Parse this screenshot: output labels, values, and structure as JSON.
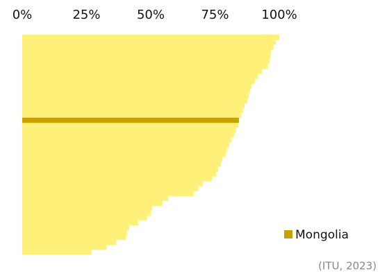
{
  "chart_data": {
    "type": "bar",
    "orientation": "horizontal",
    "categories": [
      null,
      null,
      null,
      null,
      null,
      null,
      null,
      null,
      null,
      null,
      null,
      null,
      null,
      null,
      null,
      null,
      null,
      "Mongolia",
      null,
      null,
      null,
      null,
      null,
      null,
      null,
      null,
      null,
      null,
      null,
      null,
      null,
      null,
      null,
      null,
      null,
      null,
      null,
      null,
      null,
      null,
      null,
      null,
      null,
      null,
      null
    ],
    "values": [
      100,
      98.6,
      97.8,
      96.8,
      96.5,
      96.2,
      95.4,
      93.2,
      91.6,
      90.5,
      89.2,
      88.6,
      88.1,
      87.6,
      86.5,
      85.9,
      85.1,
      84.3,
      84.1,
      83.2,
      82.4,
      81.4,
      80.5,
      79.7,
      79.1,
      77.8,
      77.3,
      76.2,
      75.4,
      73.8,
      70.3,
      68.4,
      66.8,
      56.8,
      54.6,
      50.5,
      50,
      48.4,
      45.1,
      41.6,
      40.8,
      40.3,
      36.5,
      32.7,
      27
    ],
    "color": "#fff07a",
    "highlight_color": "#c8a200",
    "xlim": [
      0,
      100
    ],
    "xticks": [
      {
        "value": 0,
        "label": "0%"
      },
      {
        "value": 25,
        "label": "25%"
      },
      {
        "value": 50,
        "label": "50%"
      },
      {
        "value": 75,
        "label": "75%"
      },
      {
        "value": 100,
        "label": "100%"
      }
    ],
    "grid": false,
    "legend": "bottom-right",
    "source": "(ITU, 2023)"
  }
}
